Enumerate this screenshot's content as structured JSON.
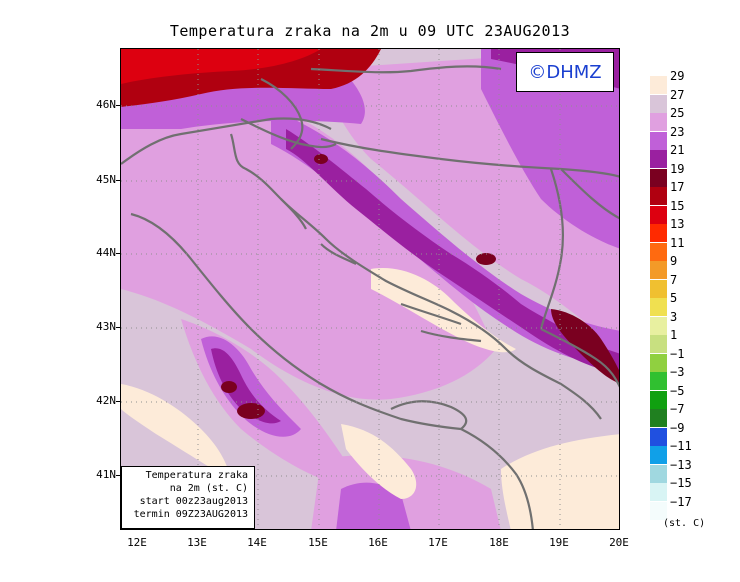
{
  "title": "Temperatura zraka na 2m u 09 UTC 23AUG2013",
  "copyright": "©DHMZ",
  "info_box": [
    "Temperatura zraka",
    "na 2m (st. C)",
    "start 00z23aug2013",
    "termin 09Z23AUG2013"
  ],
  "latitude_labels": [
    "46N",
    "45N",
    "44N",
    "43N",
    "42N",
    "41N"
  ],
  "longitude_labels": [
    "12E",
    "13E",
    "14E",
    "15E",
    "16E",
    "17E",
    "18E",
    "19E",
    "20E"
  ],
  "colorbar": {
    "unit": "(st. C)",
    "labels": [
      "29",
      "27",
      "25",
      "23",
      "21",
      "19",
      "17",
      "15",
      "13",
      "11",
      "9",
      "7",
      "5",
      "3",
      "1",
      "−1",
      "−3",
      "−5",
      "−7",
      "−9",
      "−11",
      "−13",
      "−15",
      "−17"
    ],
    "colors": [
      "#fdebd9",
      "#d9c5d9",
      "#e0a0e0",
      "#c060d8",
      "#9a20a0",
      "#7a0020",
      "#b00010",
      "#dd0010",
      "#ff2a00",
      "#ff6a10",
      "#f39a28",
      "#f0c030",
      "#f0e050",
      "#e8f0a0",
      "#c8e080",
      "#90d040",
      "#30c030",
      "#10a010",
      "#208020",
      "#2050e0",
      "#10a0e8",
      "#a0d8e0",
      "#d8f4f4",
      "#f4fcfc"
    ]
  }
}
